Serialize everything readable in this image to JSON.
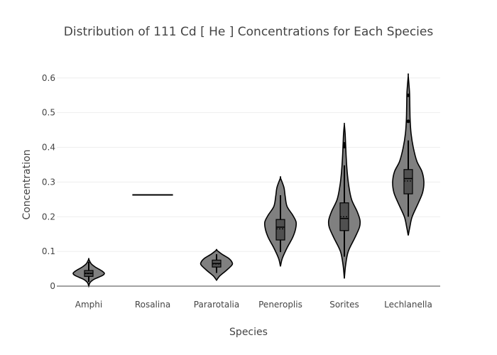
{
  "chart_data": {
    "type": "violin",
    "title": "Distribution of 111  Cd  [ He ]  Concentrations for Each Species",
    "xlabel": "Species",
    "ylabel": "Concentration",
    "ylim": [
      0,
      0.62
    ],
    "yticks": [
      0,
      0.1,
      0.2,
      0.3,
      0.4,
      0.5,
      0.6
    ],
    "ytick_labels": [
      "0",
      "0.1",
      "0.2",
      "0.3",
      "0.4",
      "0.5",
      "0.6"
    ],
    "grid": true,
    "legend": "none",
    "fill_color": "#808080",
    "line_color": "#000000",
    "box_color": "#505050",
    "categories": [
      "Amphi",
      "Rosalina",
      "Pararotalia",
      "Peneroplis",
      "Sorites",
      "Lechlanella"
    ],
    "distributions": [
      {
        "category": "Amphi",
        "min": 0.0,
        "q1": 0.028,
        "median": 0.037,
        "mean": 0.036,
        "q3": 0.045,
        "max": 0.078,
        "whisker_low": 0.012,
        "whisker_high": 0.07,
        "outliers": [],
        "density": [
          [
            0.0,
            0.0
          ],
          [
            0.01,
            0.08
          ],
          [
            0.02,
            0.35
          ],
          [
            0.03,
            0.85
          ],
          [
            0.037,
            1.0
          ],
          [
            0.045,
            0.8
          ],
          [
            0.055,
            0.42
          ],
          [
            0.065,
            0.15
          ],
          [
            0.078,
            0.0
          ]
        ]
      },
      {
        "category": "Rosalina",
        "min": 0.263,
        "q1": 0.263,
        "median": 0.263,
        "mean": 0.263,
        "q3": 0.263,
        "max": 0.263,
        "whisker_low": 0.263,
        "whisker_high": 0.263,
        "outliers": [],
        "density": []
      },
      {
        "category": "Pararotalia",
        "min": 0.017,
        "q1": 0.055,
        "median": 0.065,
        "mean": 0.064,
        "q3": 0.075,
        "max": 0.104,
        "whisker_low": 0.038,
        "whisker_high": 0.092,
        "outliers": [],
        "density": [
          [
            0.017,
            0.0
          ],
          [
            0.03,
            0.22
          ],
          [
            0.045,
            0.62
          ],
          [
            0.06,
            0.97
          ],
          [
            0.068,
            1.0
          ],
          [
            0.08,
            0.78
          ],
          [
            0.092,
            0.35
          ],
          [
            0.104,
            0.0
          ]
        ]
      },
      {
        "category": "Peneroplis",
        "min": 0.057,
        "q1": 0.133,
        "median": 0.17,
        "mean": 0.165,
        "q3": 0.192,
        "max": 0.312,
        "whisker_low": 0.098,
        "whisker_high": 0.262,
        "outliers": [],
        "density": [
          [
            0.057,
            0.0
          ],
          [
            0.08,
            0.12
          ],
          [
            0.11,
            0.42
          ],
          [
            0.14,
            0.78
          ],
          [
            0.165,
            0.97
          ],
          [
            0.185,
            1.0
          ],
          [
            0.205,
            0.78
          ],
          [
            0.23,
            0.42
          ],
          [
            0.26,
            0.3
          ],
          [
            0.285,
            0.22
          ],
          [
            0.312,
            0.0
          ]
        ]
      },
      {
        "category": "Sorites",
        "min": 0.022,
        "q1": 0.16,
        "median": 0.195,
        "mean": 0.2,
        "q3": 0.24,
        "max": 0.466,
        "whisker_low": 0.085,
        "whisker_high": 0.348,
        "outliers": [
          0.41,
          0.402
        ],
        "density": [
          [
            0.022,
            0.0
          ],
          [
            0.06,
            0.08
          ],
          [
            0.1,
            0.25
          ],
          [
            0.14,
            0.68
          ],
          [
            0.17,
            0.97
          ],
          [
            0.19,
            1.0
          ],
          [
            0.215,
            0.82
          ],
          [
            0.25,
            0.46
          ],
          [
            0.29,
            0.28
          ],
          [
            0.33,
            0.18
          ],
          [
            0.37,
            0.12
          ],
          [
            0.41,
            0.08
          ],
          [
            0.44,
            0.05
          ],
          [
            0.466,
            0.0
          ]
        ]
      },
      {
        "category": "Lechlanella",
        "min": 0.146,
        "q1": 0.266,
        "median": 0.31,
        "mean": 0.303,
        "q3": 0.336,
        "max": 0.606,
        "whisker_low": 0.2,
        "whisker_high": 0.42,
        "outliers": [
          0.55,
          0.475
        ],
        "density": [
          [
            0.146,
            0.0
          ],
          [
            0.17,
            0.1
          ],
          [
            0.2,
            0.25
          ],
          [
            0.24,
            0.65
          ],
          [
            0.27,
            0.92
          ],
          [
            0.3,
            1.0
          ],
          [
            0.33,
            0.88
          ],
          [
            0.36,
            0.55
          ],
          [
            0.4,
            0.32
          ],
          [
            0.44,
            0.18
          ],
          [
            0.48,
            0.12
          ],
          [
            0.52,
            0.1
          ],
          [
            0.56,
            0.08
          ],
          [
            0.606,
            0.0
          ]
        ]
      }
    ]
  }
}
